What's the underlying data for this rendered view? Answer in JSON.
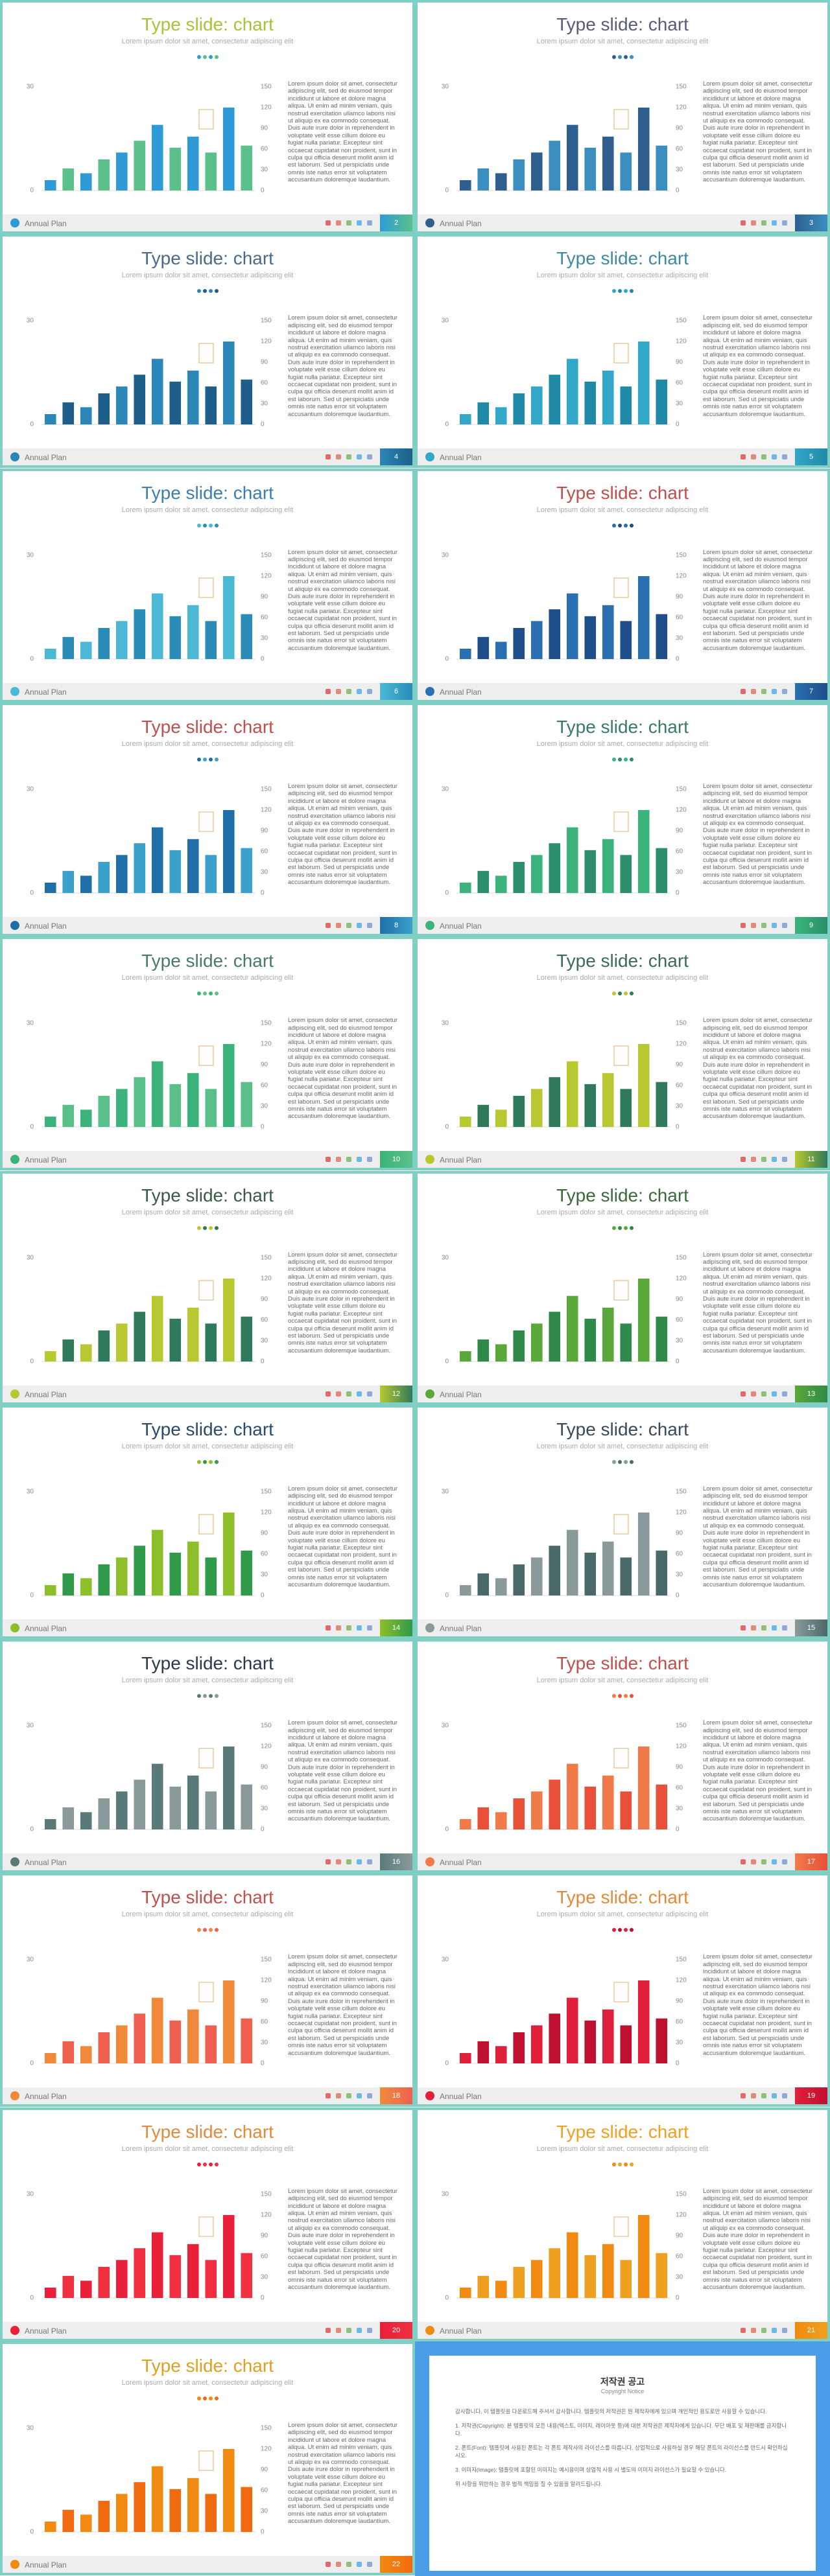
{
  "common": {
    "title": "Type slide: chart",
    "subtitle": "Lorem ipsum dolor sit amet, consectetur adipiscing elit",
    "footer": "Annual Plan",
    "body": "Lorem ipsum dolor sit amet, consectetur adipiscing elit, sed do eiusmod tempor incididunt ut labore et dolore magna aliqua. Ut enim ad minim veniam, quis nostrud exercitation ullamco laboris nisi ut aliquip ex ea commodo consequat. Duis aute irure dolor in reprehenderit in voluptate velit esse cillum dolore eu fugiat nulla pariatur. Excepteur sint occaecat cupidatat non proident, sunt in culpa qui officia deserunt mollit anim id est laborum. Sed ut perspiciatis unde omnis iste natus error sit voluptatem accusantium doloremque laudantium."
  },
  "chart_data": {
    "type": "bar",
    "ylim": [
      0,
      30
    ],
    "yticks": [
      0,
      30
    ],
    "y2lim": [
      0,
      150
    ],
    "y2ticks": [
      0,
      30,
      60,
      90,
      120,
      150
    ],
    "series": [
      {
        "axis": "y2",
        "values": [
          15,
          32,
          25,
          45,
          55,
          72,
          95,
          62,
          78,
          55,
          120,
          65
        ]
      }
    ]
  },
  "slides": [
    {
      "page": 2,
      "title_color": "#a6c33a",
      "colors": [
        "#2e9bd6",
        "#5bc08a"
      ]
    },
    {
      "page": 3,
      "title_color": "#5a5a7a",
      "colors": [
        "#2f5f8f",
        "#3a8ec0"
      ]
    },
    {
      "page": 4,
      "title_color": "#4a6a8a",
      "colors": [
        "#2b87b8",
        "#1d5f8a"
      ]
    },
    {
      "page": 5,
      "title_color": "#3d8aa0",
      "colors": [
        "#33a7c7",
        "#1f8aa8"
      ]
    },
    {
      "page": 6,
      "title_color": "#3a7fb0",
      "colors": [
        "#4bb8d6",
        "#2a8db8"
      ]
    },
    {
      "page": 7,
      "title_color": "#c0504d",
      "colors": [
        "#2a6fb0",
        "#1e4f8a"
      ]
    },
    {
      "page": 8,
      "title_color": "#c0504d",
      "colors": [
        "#1f6fa8",
        "#3aa0cc"
      ]
    },
    {
      "page": 9,
      "title_color": "#3a7a6a",
      "colors": [
        "#3cb37a",
        "#2a8f6a"
      ]
    },
    {
      "page": 10,
      "title_color": "#4a7a6a",
      "colors": [
        "#3cb37a",
        "#5ac08a"
      ]
    },
    {
      "page": 11,
      "title_color": "#3d6a5a",
      "colors": [
        "#b8c830",
        "#2f7a5a"
      ]
    },
    {
      "page": 12,
      "title_color": "#3a5a4a",
      "colors": [
        "#b8c830",
        "#2f7a5a"
      ]
    },
    {
      "page": 13,
      "title_color": "#3a6a3a",
      "colors": [
        "#5aa83a",
        "#2f8a4a"
      ]
    },
    {
      "page": 14,
      "title_color": "#2a4a6a",
      "colors": [
        "#8dbf2a",
        "#2f9a4a"
      ]
    },
    {
      "page": 15,
      "title_color": "#3a4a5a",
      "colors": [
        "#8a9a9a",
        "#4a6a6a"
      ]
    },
    {
      "page": 16,
      "title_color": "#2a3a4a",
      "colors": [
        "#5a7a7a",
        "#8a9a9a"
      ]
    },
    {
      "page": 17,
      "title_color": "#c0504d",
      "colors": [
        "#f07a4a",
        "#e8503a"
      ]
    },
    {
      "page": 18,
      "title_color": "#c0504d",
      "colors": [
        "#f08a3a",
        "#f06050"
      ]
    },
    {
      "page": 19,
      "title_color": "#e08a3a",
      "colors": [
        "#e0203a",
        "#c01030"
      ]
    },
    {
      "page": 20,
      "title_color": "#e08a3a",
      "colors": [
        "#e8203a",
        "#f03040"
      ]
    },
    {
      "page": 21,
      "title_color": "#f0a020",
      "colors": [
        "#f08a10",
        "#f0a020"
      ]
    },
    {
      "page": 22,
      "title_color": "#e0a020",
      "colors": [
        "#f08a10",
        "#f06a10"
      ]
    }
  ],
  "copyright": {
    "title": "저작권 공고",
    "subtitle": "Copyright Notice",
    "paragraphs": [
      "감사합니다. 이 템플릿을 다운로드해 주셔서 감사합니다. 템플릿의 저작권은 원 제작자에게 있으며 개인적인 용도로만 사용할 수 있습니다.",
      "1. 저작권(Copyright): 본 템플릿의 모든 내용(텍스트, 이미지, 레이아웃 등)에 대한 저작권은 제작자에게 있습니다. 무단 배포 및 재판매를 금지합니다.",
      "2. 폰트(Font): 템플릿에 사용된 폰트는 각 폰트 제작사의 라이선스를 따릅니다. 상업적으로 사용하실 경우 해당 폰트의 라이선스를 반드시 확인하십시오.",
      "3. 이미지(Image): 템플릿에 포함된 이미지는 예시용이며 상업적 사용 시 별도의 이미지 라이선스가 필요할 수 있습니다.",
      "위 사항을 위반하는 경우 법적 책임을 질 수 있음을 알려드립니다."
    ]
  }
}
